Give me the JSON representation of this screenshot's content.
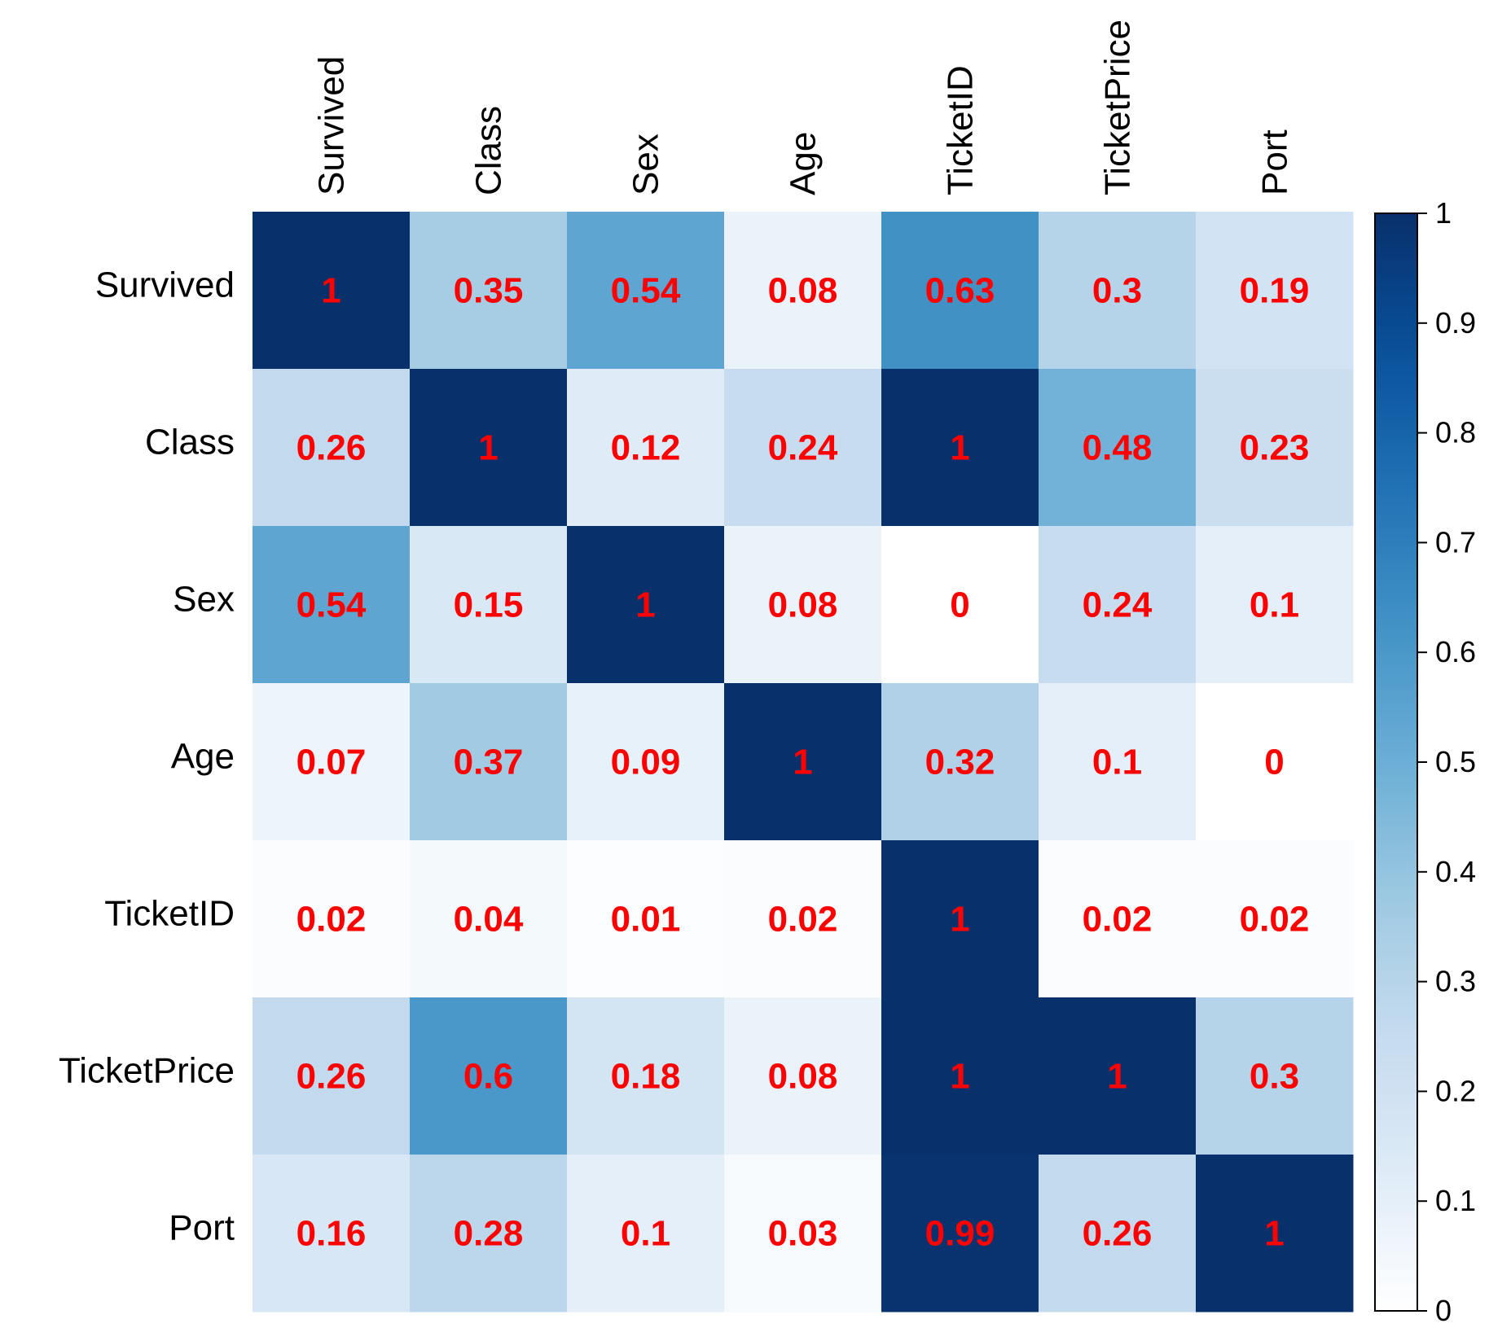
{
  "chart_data": {
    "type": "heatmap",
    "title": "",
    "xlabel": "",
    "ylabel": "",
    "x_labels": [
      "Survived",
      "Class",
      "Sex",
      "Age",
      "TicketID",
      "TicketPrice",
      "Port"
    ],
    "y_labels": [
      "Survived",
      "Class",
      "Sex",
      "Age",
      "TicketID",
      "TicketPrice",
      "Port"
    ],
    "values": [
      [
        1,
        0.35,
        0.54,
        0.08,
        0.63,
        0.3,
        0.19
      ],
      [
        0.26,
        1,
        0.12,
        0.24,
        1,
        0.48,
        0.23
      ],
      [
        0.54,
        0.15,
        1,
        0.08,
        0,
        0.24,
        0.1
      ],
      [
        0.07,
        0.37,
        0.09,
        1,
        0.32,
        0.1,
        0
      ],
      [
        0.02,
        0.04,
        0.01,
        0.02,
        1,
        0.02,
        0.02
      ],
      [
        0.26,
        0.6,
        0.18,
        0.08,
        1,
        1,
        0.3
      ],
      [
        0.16,
        0.28,
        0.1,
        0.03,
        0.99,
        0.26,
        1
      ]
    ],
    "colorbar": {
      "range": [
        0,
        1
      ],
      "ticks": [
        "0",
        "0.1",
        "0.2",
        "0.3",
        "0.4",
        "0.5",
        "0.6",
        "0.7",
        "0.8",
        "0.9",
        "1"
      ]
    },
    "colors": {
      "low": "#ffffff",
      "high": "#08306b",
      "label": "#ff0000"
    },
    "legend_position": "right"
  }
}
